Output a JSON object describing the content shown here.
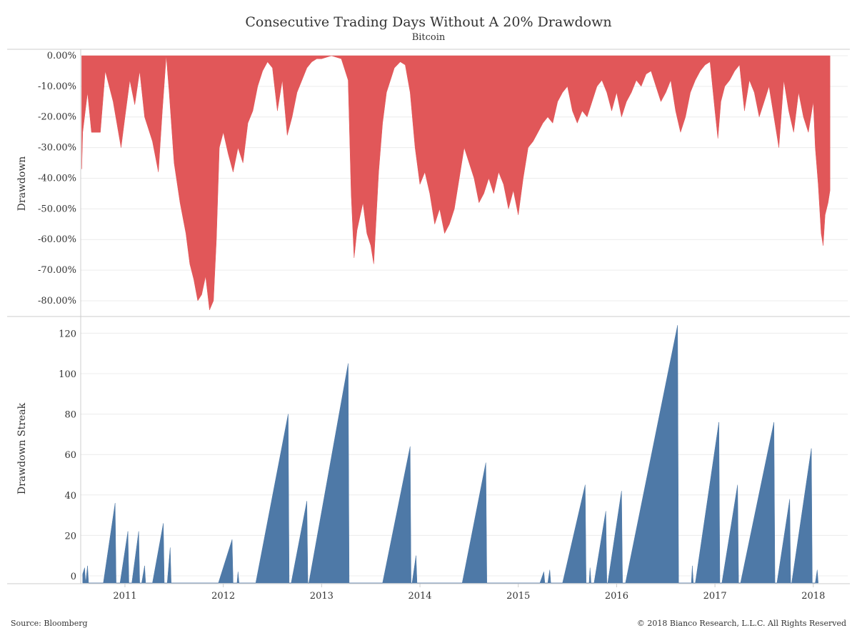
{
  "title": "Consecutive Trading Days Without A 20% Drawdown",
  "subtitle": "Bitcoin",
  "source": "Source: Bloomberg",
  "copyright": "© 2018 Bianco Research, L.L.C. All Rights Reserved",
  "colors": {
    "drawdown": "#e15759",
    "streak": "#4e79a7",
    "grid": "#ececec",
    "axis": "#cccccc"
  },
  "chart_data": [
    {
      "type": "area",
      "title": "",
      "ylabel": "Drawdown",
      "y_tick_labels": [
        "0.00%",
        "-10.00%",
        "-20.00%",
        "-30.00%",
        "-40.00%",
        "-50.00%",
        "-60.00%",
        "-70.00%",
        "-80.00%"
      ],
      "ylim": [
        -87,
        0
      ],
      "x_tick_labels": [
        "2011",
        "2012",
        "2013",
        "2014",
        "2015",
        "2016",
        "2017",
        "2018"
      ],
      "xlim": [
        2010.55,
        2018.35
      ],
      "series": [
        {
          "points": [
            [
              2010.56,
              -37
            ],
            [
              2010.57,
              -25
            ],
            [
              2010.62,
              -12
            ],
            [
              2010.66,
              -25
            ],
            [
              2010.75,
              -25
            ],
            [
              2010.8,
              -5
            ],
            [
              2010.88,
              -15
            ],
            [
              2010.96,
              -30
            ],
            [
              2011.0,
              -20
            ],
            [
              2011.05,
              -8
            ],
            [
              2011.1,
              -16
            ],
            [
              2011.15,
              -5
            ],
            [
              2011.2,
              -20
            ],
            [
              2011.28,
              -28
            ],
            [
              2011.34,
              -38
            ],
            [
              2011.38,
              -18
            ],
            [
              2011.42,
              0
            ],
            [
              2011.45,
              -12
            ],
            [
              2011.5,
              -35
            ],
            [
              2011.56,
              -48
            ],
            [
              2011.62,
              -58
            ],
            [
              2011.66,
              -68
            ],
            [
              2011.7,
              -73
            ],
            [
              2011.74,
              -80
            ],
            [
              2011.78,
              -78
            ],
            [
              2011.82,
              -72
            ],
            [
              2011.86,
              -83
            ],
            [
              2011.9,
              -80
            ],
            [
              2011.93,
              -60
            ],
            [
              2011.96,
              -30
            ],
            [
              2012.0,
              -25
            ],
            [
              2012.05,
              -32
            ],
            [
              2012.1,
              -38
            ],
            [
              2012.15,
              -30
            ],
            [
              2012.2,
              -35
            ],
            [
              2012.25,
              -22
            ],
            [
              2012.3,
              -18
            ],
            [
              2012.35,
              -10
            ],
            [
              2012.4,
              -5
            ],
            [
              2012.45,
              -2
            ],
            [
              2012.5,
              -4
            ],
            [
              2012.55,
              -18
            ],
            [
              2012.6,
              -8
            ],
            [
              2012.65,
              -26
            ],
            [
              2012.7,
              -20
            ],
            [
              2012.75,
              -12
            ],
            [
              2012.8,
              -8
            ],
            [
              2012.85,
              -4
            ],
            [
              2012.9,
              -2
            ],
            [
              2012.95,
              -1
            ],
            [
              2013.0,
              -1
            ],
            [
              2013.1,
              0
            ],
            [
              2013.2,
              -1
            ],
            [
              2013.27,
              -8
            ],
            [
              2013.3,
              -45
            ],
            [
              2013.33,
              -66
            ],
            [
              2013.36,
              -57
            ],
            [
              2013.42,
              -48
            ],
            [
              2013.46,
              -58
            ],
            [
              2013.5,
              -62
            ],
            [
              2013.53,
              -68
            ],
            [
              2013.58,
              -38
            ],
            [
              2013.62,
              -22
            ],
            [
              2013.66,
              -12
            ],
            [
              2013.7,
              -8
            ],
            [
              2013.74,
              -4
            ],
            [
              2013.8,
              -2
            ],
            [
              2013.85,
              -3
            ],
            [
              2013.9,
              -12
            ],
            [
              2013.95,
              -30
            ],
            [
              2014.0,
              -42
            ],
            [
              2014.05,
              -38
            ],
            [
              2014.1,
              -45
            ],
            [
              2014.15,
              -55
            ],
            [
              2014.2,
              -50
            ],
            [
              2014.25,
              -58
            ],
            [
              2014.3,
              -55
            ],
            [
              2014.35,
              -50
            ],
            [
              2014.4,
              -40
            ],
            [
              2014.45,
              -30
            ],
            [
              2014.5,
              -35
            ],
            [
              2014.55,
              -40
            ],
            [
              2014.6,
              -48
            ],
            [
              2014.65,
              -45
            ],
            [
              2014.7,
              -40
            ],
            [
              2014.75,
              -45
            ],
            [
              2014.8,
              -38
            ],
            [
              2014.85,
              -42
            ],
            [
              2014.9,
              -50
            ],
            [
              2014.95,
              -44
            ],
            [
              2015.0,
              -52
            ],
            [
              2015.05,
              -40
            ],
            [
              2015.1,
              -30
            ],
            [
              2015.15,
              -28
            ],
            [
              2015.2,
              -25
            ],
            [
              2015.25,
              -22
            ],
            [
              2015.3,
              -20
            ],
            [
              2015.35,
              -22
            ],
            [
              2015.4,
              -15
            ],
            [
              2015.45,
              -12
            ],
            [
              2015.5,
              -10
            ],
            [
              2015.55,
              -18
            ],
            [
              2015.6,
              -22
            ],
            [
              2015.65,
              -18
            ],
            [
              2015.7,
              -20
            ],
            [
              2015.75,
              -15
            ],
            [
              2015.8,
              -10
            ],
            [
              2015.85,
              -8
            ],
            [
              2015.9,
              -12
            ],
            [
              2015.95,
              -18
            ],
            [
              2016.0,
              -12
            ],
            [
              2016.05,
              -20
            ],
            [
              2016.1,
              -15
            ],
            [
              2016.15,
              -12
            ],
            [
              2016.2,
              -8
            ],
            [
              2016.25,
              -10
            ],
            [
              2016.3,
              -6
            ],
            [
              2016.35,
              -5
            ],
            [
              2016.4,
              -10
            ],
            [
              2016.45,
              -15
            ],
            [
              2016.5,
              -12
            ],
            [
              2016.55,
              -8
            ],
            [
              2016.6,
              -18
            ],
            [
              2016.65,
              -25
            ],
            [
              2016.7,
              -20
            ],
            [
              2016.75,
              -12
            ],
            [
              2016.8,
              -8
            ],
            [
              2016.85,
              -5
            ],
            [
              2016.9,
              -3
            ],
            [
              2016.95,
              -2
            ],
            [
              2017.0,
              -18
            ],
            [
              2017.03,
              -27
            ],
            [
              2017.06,
              -15
            ],
            [
              2017.1,
              -10
            ],
            [
              2017.15,
              -8
            ],
            [
              2017.2,
              -5
            ],
            [
              2017.25,
              -3
            ],
            [
              2017.3,
              -18
            ],
            [
              2017.35,
              -8
            ],
            [
              2017.4,
              -12
            ],
            [
              2017.45,
              -20
            ],
            [
              2017.5,
              -15
            ],
            [
              2017.55,
              -10
            ],
            [
              2017.6,
              -20
            ],
            [
              2017.65,
              -30
            ],
            [
              2017.7,
              -8
            ],
            [
              2017.75,
              -18
            ],
            [
              2017.8,
              -25
            ],
            [
              2017.85,
              -12
            ],
            [
              2017.9,
              -20
            ],
            [
              2017.95,
              -25
            ],
            [
              2018.0,
              -15
            ],
            [
              2018.02,
              -30
            ],
            [
              2018.05,
              -42
            ],
            [
              2018.08,
              -58
            ],
            [
              2018.1,
              -62
            ],
            [
              2018.12,
              -52
            ],
            [
              2018.15,
              -48
            ],
            [
              2018.17,
              -44
            ]
          ]
        }
      ]
    },
    {
      "type": "area",
      "title": "",
      "ylabel": "Drawdown Streak",
      "y_tick_labels": [
        "0",
        "20",
        "40",
        "60",
        "80",
        "100",
        "120"
      ],
      "ylim": [
        -3,
        130
      ],
      "x_tick_labels": [
        "2011",
        "2012",
        "2013",
        "2014",
        "2015",
        "2016",
        "2017",
        "2018"
      ],
      "xlim": [
        2010.55,
        2018.35
      ],
      "series": [
        {
          "points": [
            [
              2010.57,
              1
            ],
            [
              2010.59,
              4
            ],
            [
              2010.6,
              0
            ],
            [
              2010.62,
              5
            ],
            [
              2010.63,
              0
            ],
            [
              2010.78,
              0
            ],
            [
              2010.9,
              36
            ],
            [
              2010.91,
              0
            ],
            [
              2010.95,
              0
            ],
            [
              2011.03,
              22
            ],
            [
              2011.04,
              0
            ],
            [
              2011.07,
              0
            ],
            [
              2011.14,
              22
            ],
            [
              2011.15,
              0
            ],
            [
              2011.17,
              0
            ],
            [
              2011.2,
              5
            ],
            [
              2011.21,
              0
            ],
            [
              2011.28,
              0
            ],
            [
              2011.39,
              26
            ],
            [
              2011.4,
              0
            ],
            [
              2011.43,
              0
            ],
            [
              2011.46,
              14
            ],
            [
              2011.47,
              0
            ],
            [
              2011.95,
              0
            ],
            [
              2012.09,
              18
            ],
            [
              2012.1,
              0
            ],
            [
              2012.14,
              0
            ],
            [
              2012.15,
              2
            ],
            [
              2012.16,
              0
            ],
            [
              2012.33,
              0
            ],
            [
              2012.66,
              80
            ],
            [
              2012.67,
              0
            ],
            [
              2012.69,
              0
            ],
            [
              2012.85,
              37
            ],
            [
              2012.86,
              0
            ],
            [
              2012.87,
              0
            ],
            [
              2013.27,
              105
            ],
            [
              2013.28,
              0
            ],
            [
              2013.62,
              0
            ],
            [
              2013.9,
              64
            ],
            [
              2013.91,
              0
            ],
            [
              2013.92,
              0
            ],
            [
              2013.96,
              10
            ],
            [
              2013.97,
              0
            ],
            [
              2014.43,
              0
            ],
            [
              2014.67,
              56
            ],
            [
              2014.68,
              0
            ],
            [
              2015.22,
              0
            ],
            [
              2015.26,
              2
            ],
            [
              2015.27,
              0
            ],
            [
              2015.3,
              0
            ],
            [
              2015.32,
              3
            ],
            [
              2015.33,
              0
            ],
            [
              2015.45,
              0
            ],
            [
              2015.68,
              45
            ],
            [
              2015.69,
              0
            ],
            [
              2015.72,
              0
            ],
            [
              2015.73,
              4
            ],
            [
              2015.74,
              0
            ],
            [
              2015.77,
              0
            ],
            [
              2015.89,
              32
            ],
            [
              2015.9,
              0
            ],
            [
              2015.91,
              0
            ],
            [
              2016.05,
              42
            ],
            [
              2016.06,
              0
            ],
            [
              2016.09,
              0
            ],
            [
              2016.62,
              124
            ],
            [
              2016.63,
              0
            ],
            [
              2016.76,
              0
            ],
            [
              2016.77,
              5
            ],
            [
              2016.78,
              0
            ],
            [
              2016.8,
              0
            ],
            [
              2017.04,
              76
            ],
            [
              2017.05,
              0
            ],
            [
              2017.07,
              0
            ],
            [
              2017.23,
              45
            ],
            [
              2017.24,
              0
            ],
            [
              2017.26,
              0
            ],
            [
              2017.6,
              76
            ],
            [
              2017.61,
              0
            ],
            [
              2017.63,
              0
            ],
            [
              2017.76,
              38
            ],
            [
              2017.77,
              0
            ],
            [
              2017.78,
              0
            ],
            [
              2017.98,
              63
            ],
            [
              2017.99,
              0
            ],
            [
              2018.02,
              0
            ],
            [
              2018.04,
              3
            ],
            [
              2018.05,
              0
            ]
          ]
        }
      ]
    }
  ]
}
